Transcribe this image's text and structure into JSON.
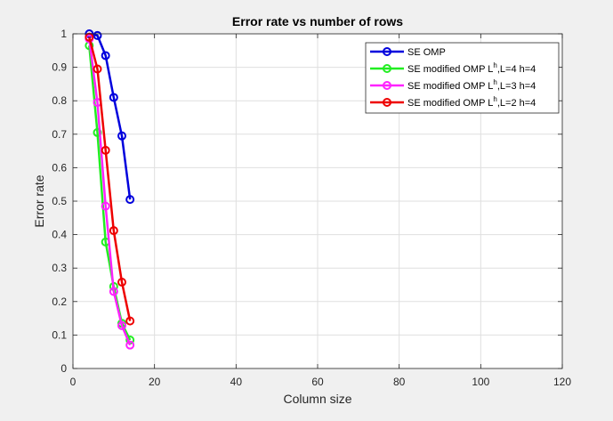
{
  "chart_data": {
    "type": "line",
    "title": "Error rate vs number of rows",
    "xlabel": "Column size",
    "ylabel": "Error rate",
    "xlim": [
      0,
      120
    ],
    "ylim": [
      0,
      1
    ],
    "xticks": [
      0,
      20,
      40,
      60,
      80,
      100,
      120
    ],
    "yticks": [
      0,
      0.1,
      0.2,
      0.3,
      0.4,
      0.5,
      0.6,
      0.7,
      0.8,
      0.9,
      1
    ],
    "grid": true,
    "legend_position": "top-right",
    "marker": "circle",
    "series": [
      {
        "name_prefix": "SE OMP",
        "superscript": "",
        "name_suffix": "",
        "color": "#0000dd",
        "x": [
          4,
          6,
          8,
          10,
          12,
          14
        ],
        "y": [
          1.0,
          0.995,
          0.935,
          0.81,
          0.695,
          0.505
        ]
      },
      {
        "name_prefix": "SE modified OMP L",
        "superscript": "h",
        "name_suffix": ",L=4 h=4",
        "color": "#22ee22",
        "x": [
          4,
          6,
          8,
          10,
          12,
          14
        ],
        "y": [
          0.965,
          0.705,
          0.378,
          0.245,
          0.135,
          0.085
        ]
      },
      {
        "name_prefix": "SE modified OMP L",
        "superscript": "h",
        "name_suffix": ",L=3 h=4",
        "color": "#ff22ff",
        "x": [
          4,
          6,
          8,
          10,
          12,
          14
        ],
        "y": [
          0.985,
          0.795,
          0.485,
          0.23,
          0.128,
          0.07
        ]
      },
      {
        "name_prefix": "SE modified OMP L",
        "superscript": "h",
        "name_suffix": ",L=2 h=4",
        "color": "#ee0000",
        "x": [
          4,
          6,
          8,
          10,
          12,
          14
        ],
        "y": [
          0.99,
          0.895,
          0.652,
          0.412,
          0.258,
          0.142
        ]
      }
    ]
  }
}
